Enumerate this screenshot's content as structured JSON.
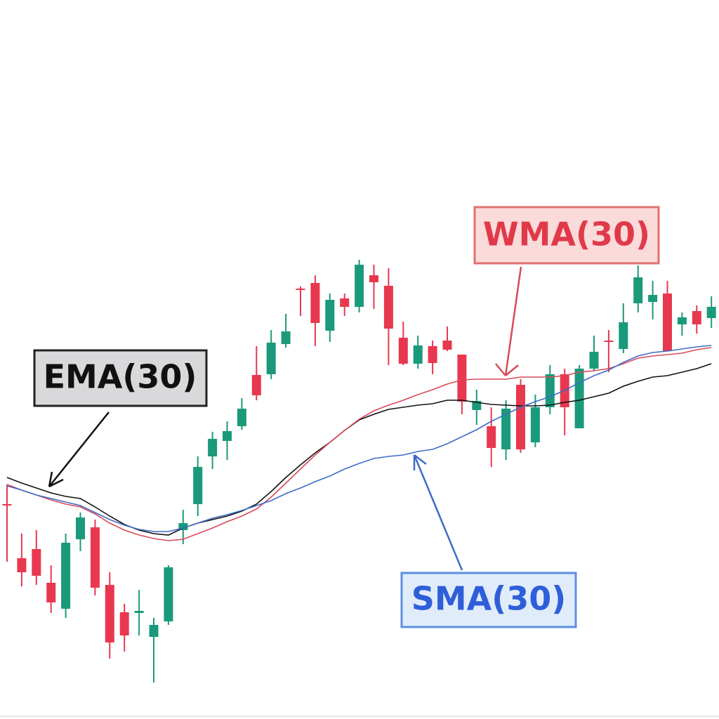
{
  "chart_data": {
    "type": "candlestick",
    "ylim": [
      0,
      1024
    ],
    "up_color": "#1a9a7a",
    "down_color": "#e8384f",
    "open": [
      306,
      229,
      242,
      194,
      157,
      256,
      273,
      191,
      152,
      151,
      117,
      139,
      269,
      306,
      374,
      396,
      417,
      490,
      491,
      534,
      613,
      621,
      553,
      599,
      587,
      632,
      617,
      543,
      506,
      531,
      539,
      519,
      440,
      417,
      384,
      476,
      394,
      444,
      491,
      414,
      499,
      539,
      527,
      592,
      594,
      606,
      562,
      581,
      571
    ],
    "high": [
      334,
      264,
      269,
      219,
      264,
      294,
      284,
      209,
      164,
      184,
      144,
      219,
      298,
      374,
      409,
      424,
      457,
      531,
      554,
      577,
      616,
      632,
      606,
      606,
      654,
      647,
      642,
      566,
      546,
      539,
      559,
      519,
      469,
      444,
      454,
      484,
      462,
      504,
      499,
      504,
      546,
      554,
      592,
      646,
      624,
      624,
      579,
      589,
      602
    ],
    "low": [
      224,
      189,
      191,
      151,
      144,
      239,
      176,
      86,
      96,
      119,
      52,
      134,
      249,
      289,
      356,
      369,
      412,
      454,
      484,
      529,
      574,
      531,
      537,
      574,
      579,
      584,
      504,
      504,
      499,
      491,
      524,
      434,
      419,
      359,
      369,
      379,
      387,
      434,
      404,
      414,
      496,
      494,
      521,
      579,
      569,
      524,
      546,
      549,
      557
    ],
    "close": [
      304,
      209,
      204,
      166,
      251,
      287,
      187,
      109,
      119,
      154,
      134,
      216,
      279,
      359,
      399,
      410,
      442,
      461,
      536,
      552,
      611,
      564,
      597,
      587,
      647,
      622,
      556,
      506,
      532,
      507,
      526,
      452,
      453,
      386,
      442,
      384,
      444,
      491,
      444,
      499,
      523,
      537,
      565,
      629,
      604,
      524,
      572,
      562,
      587
    ],
    "series": [
      {
        "name": "EMA(30)",
        "color": "#111111",
        "values": [
          344,
          336,
          329,
          322,
          317,
          314,
          302,
          289,
          277,
          269,
          264,
          262,
          272,
          279,
          284,
          289,
          296,
          306,
          324,
          344,
          362,
          379,
          394,
          411,
          426,
          434,
          441,
          444,
          447,
          449,
          454,
          454,
          451,
          448,
          447,
          446,
          446,
          447,
          451,
          454,
          459,
          464,
          474,
          481,
          487,
          489,
          494,
          499,
          506
        ]
      },
      {
        "name": "WMA(30)",
        "color": "#d9495a",
        "values": [
          334,
          326,
          319,
          312,
          306,
          302,
          292,
          279,
          269,
          262,
          257,
          254,
          256,
          264,
          272,
          281,
          289,
          299,
          316,
          336,
          356,
          376,
          394,
          411,
          427,
          439,
          447,
          454,
          462,
          469,
          477,
          483,
          484,
          484,
          484,
          487,
          487,
          487,
          489,
          494,
          496,
          499,
          506,
          514,
          517,
          519,
          521,
          526,
          529
        ]
      },
      {
        "name": "SMA(30)",
        "color": "#3d6cc8",
        "values": [
          332,
          326,
          319,
          314,
          309,
          304,
          294,
          284,
          276,
          270,
          267,
          267,
          272,
          279,
          286,
          291,
          297,
          304,
          311,
          321,
          329,
          338,
          346,
          356,
          364,
          371,
          374,
          376,
          381,
          384,
          392,
          402,
          412,
          424,
          434,
          444,
          452,
          459,
          468,
          479,
          489,
          497,
          508,
          517,
          522,
          524,
          527,
          530,
          532
        ]
      }
    ]
  }
}
